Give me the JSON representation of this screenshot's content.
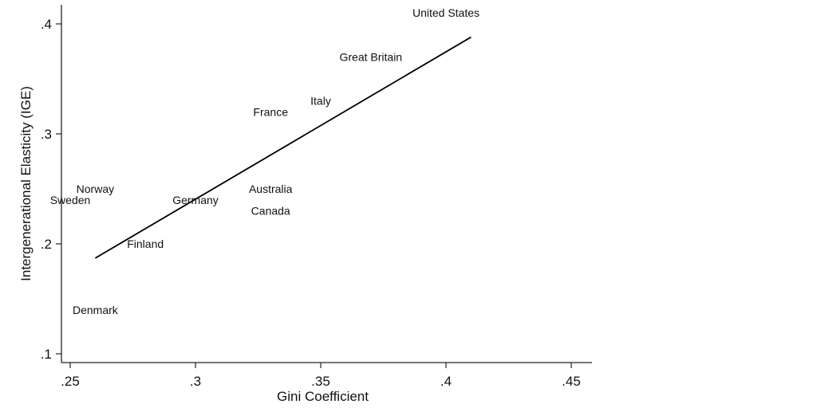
{
  "chart_data": {
    "type": "scatter",
    "marker": "label-only",
    "title": "",
    "xlabel": "Gini Coefficient",
    "ylabel": "Intergenerational Elasticity (IGE)",
    "xlim": [
      0.25,
      0.45
    ],
    "ylim": [
      0.1,
      0.41
    ],
    "x_ticks": [
      {
        "value": 0.25,
        "label": ".25"
      },
      {
        "value": 0.3,
        "label": ".3"
      },
      {
        "value": 0.35,
        "label": ".35"
      },
      {
        "value": 0.4,
        "label": ".4"
      },
      {
        "value": 0.45,
        "label": ".45"
      }
    ],
    "y_ticks": [
      {
        "value": 0.1,
        "label": ".1"
      },
      {
        "value": 0.2,
        "label": ".2"
      },
      {
        "value": 0.3,
        "label": ".3"
      },
      {
        "value": 0.4,
        "label": ".4"
      }
    ],
    "grid": false,
    "points": [
      {
        "label": "United States",
        "x": 0.4,
        "y": 0.41
      },
      {
        "label": "Great Britain",
        "x": 0.37,
        "y": 0.37
      },
      {
        "label": "Italy",
        "x": 0.35,
        "y": 0.33
      },
      {
        "label": "France",
        "x": 0.33,
        "y": 0.32
      },
      {
        "label": "Norway",
        "x": 0.26,
        "y": 0.25
      },
      {
        "label": "Sweden",
        "x": 0.25,
        "y": 0.24
      },
      {
        "label": "Germany",
        "x": 0.3,
        "y": 0.24
      },
      {
        "label": "Australia",
        "x": 0.33,
        "y": 0.25
      },
      {
        "label": "Canada",
        "x": 0.33,
        "y": 0.23
      },
      {
        "label": "Finland",
        "x": 0.28,
        "y": 0.2
      },
      {
        "label": "Denmark",
        "x": 0.26,
        "y": 0.14
      }
    ],
    "fit_line": {
      "x": [
        0.26,
        0.41
      ],
      "y": [
        0.187,
        0.388
      ]
    }
  }
}
